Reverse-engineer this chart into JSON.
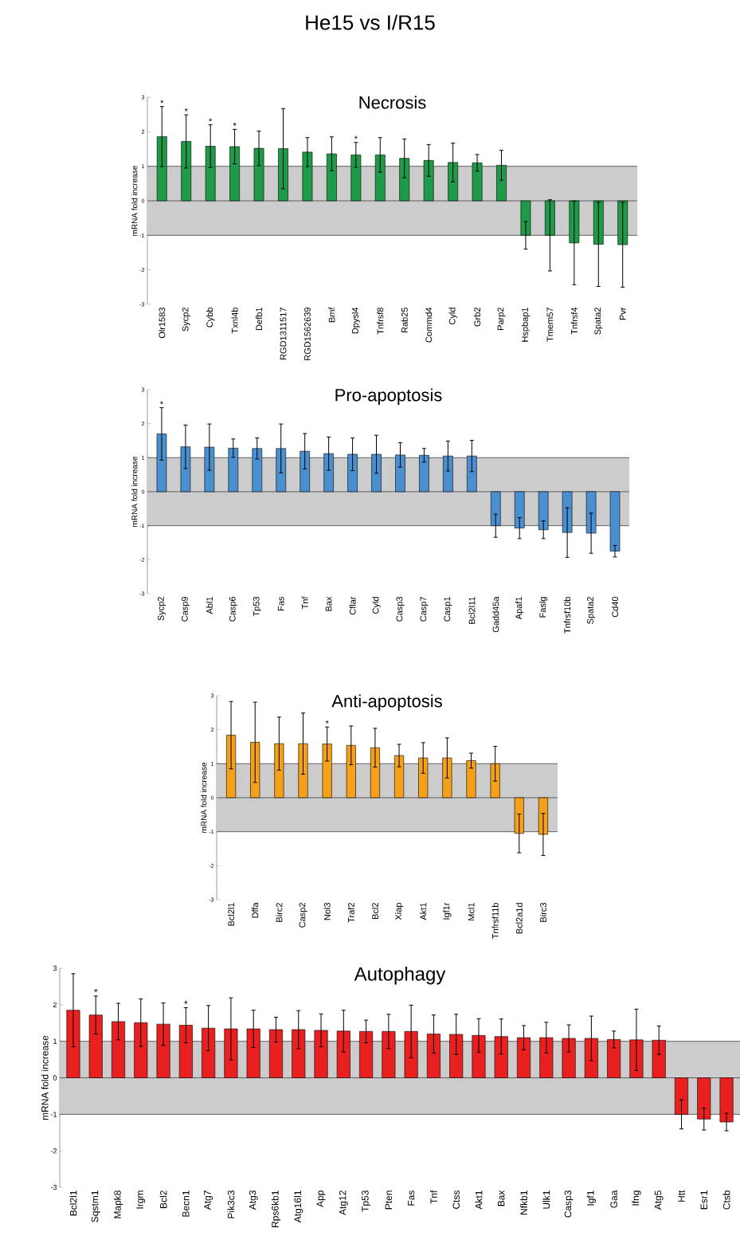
{
  "chart_data": [
    {
      "type": "bar",
      "title": "He15 vs I/R15",
      "subtitle": "Necrosis",
      "ylabel": "mRNA fold increase",
      "color": "#1f9a48",
      "categories": [
        "Olr1583",
        "Sycp2",
        "Cybb",
        "Txnl4b",
        "Defb1",
        "RGD1311517",
        "RGD1562639",
        "Bmf",
        "Dpysl4",
        "Tnfrsf8",
        "Rab25",
        "Commd4",
        "Cyld",
        "Grb2",
        "Parp2",
        "Hspbap1",
        "Tmem57",
        "Tnfrsf4",
        "Spata2",
        "Pvr"
      ],
      "values": [
        1.86,
        1.72,
        1.58,
        1.57,
        1.52,
        1.51,
        1.41,
        1.36,
        1.33,
        1.33,
        1.23,
        1.17,
        1.11,
        1.1,
        1.03,
        -1.0,
        -1.0,
        -1.22,
        -1.26,
        -1.27
      ],
      "errors": [
        0.87,
        0.77,
        0.62,
        0.5,
        0.5,
        1.16,
        0.42,
        0.49,
        0.36,
        0.5,
        0.56,
        0.46,
        0.56,
        0.24,
        0.43,
        0.4,
        1.03,
        1.21,
        1.22,
        1.23
      ],
      "ylim": [
        -3,
        3
      ],
      "yticks": [
        -3,
        -2,
        -1,
        0,
        1,
        2,
        3
      ],
      "bands": [
        {
          "axis": "y",
          "from": -1,
          "to": 1,
          "color": "#cccccc"
        }
      ],
      "ref_lines": [
        {
          "axis": "y",
          "value": -1
        },
        {
          "axis": "y",
          "value": 0
        },
        {
          "axis": "y",
          "value": 1
        }
      ],
      "annotations": [
        "*",
        "*",
        "*",
        "*",
        "*"
      ]
    },
    {
      "type": "bar",
      "title": "Pro-apoptosis",
      "ylabel": "mRNA fold increase",
      "color": "#4a90d0",
      "categories": [
        "Sycp2",
        "Casp9",
        "Abl1",
        "Casp6",
        "Tp53",
        "Fas",
        "Tnf",
        "Bax",
        "Cflar",
        "Cyld",
        "Casp3",
        "Casp7",
        "Casp1",
        "Bcl2l11",
        "Gadd45a",
        "Apaf1",
        "Faslg",
        "Tnfrsf10b",
        "Spata2",
        "Cd40"
      ],
      "values": [
        1.7,
        1.32,
        1.31,
        1.28,
        1.27,
        1.27,
        1.19,
        1.12,
        1.1,
        1.1,
        1.08,
        1.07,
        1.05,
        1.05,
        -1.0,
        -1.07,
        -1.12,
        -1.2,
        -1.22,
        -1.75
      ],
      "errors": [
        0.77,
        0.64,
        0.68,
        0.27,
        0.31,
        0.72,
        0.52,
        0.49,
        0.48,
        0.56,
        0.36,
        0.2,
        0.44,
        0.46,
        0.34,
        0.31,
        0.26,
        0.73,
        0.59,
        0.17
      ],
      "ylim": [
        -3,
        3
      ],
      "yticks": [
        -3,
        -2,
        -1,
        0,
        1,
        2,
        3
      ],
      "bands": [
        {
          "axis": "y",
          "from": -1,
          "to": 1,
          "color": "#cccccc"
        }
      ],
      "ref_lines": [
        {
          "axis": "y",
          "value": -1
        },
        {
          "axis": "y",
          "value": 0
        },
        {
          "axis": "y",
          "value": 1
        }
      ],
      "annotations": [
        "*"
      ]
    },
    {
      "type": "bar",
      "title": "Anti-apoptosis",
      "ylabel": "mRNA fold increase",
      "color": "#f5a01a",
      "categories": [
        "Bcl2l1",
        "Dffa",
        "Birc2",
        "Casp2",
        "Nol3",
        "Traf2",
        "Bcl2",
        "Xiap",
        "Akt1",
        "Igf1r",
        "Mcl1",
        "Tnfrsf11b",
        "Bcl2a1d",
        "Birc3"
      ],
      "values": [
        1.84,
        1.63,
        1.59,
        1.59,
        1.58,
        1.54,
        1.47,
        1.24,
        1.17,
        1.17,
        1.09,
        1.0,
        -1.05,
        -1.08
      ],
      "errors": [
        0.99,
        1.18,
        0.78,
        0.9,
        0.5,
        0.57,
        0.57,
        0.33,
        0.45,
        0.59,
        0.22,
        0.51,
        0.57,
        0.62
      ],
      "ylim": [
        -3,
        3
      ],
      "yticks": [
        -3,
        -2,
        -1,
        0,
        1,
        2,
        3
      ],
      "bands": [
        {
          "axis": "y",
          "from": -1,
          "to": 1,
          "color": "#cccccc"
        }
      ],
      "ref_lines": [
        {
          "axis": "y",
          "value": -1
        },
        {
          "axis": "y",
          "value": 0
        },
        {
          "axis": "y",
          "value": 1
        }
      ],
      "annotations": [
        "*"
      ]
    },
    {
      "type": "bar",
      "title": "Autophagy",
      "ylabel": "mRNA fold increase",
      "color": "#e82020",
      "categories": [
        "Bcl2l1",
        "Sqstm1",
        "Mapk8",
        "Irgm",
        "Bcl2",
        "Becn1",
        "Atg7",
        "Pik3c3",
        "Atg3",
        "Rps6kb1",
        "Atg16l1",
        "App",
        "Atg12",
        "Tp53",
        "Pten",
        "Fas",
        "Tnf",
        "Ctss",
        "Akt1",
        "Bax",
        "Nfkb1",
        "Ulk1",
        "Casp3",
        "Igf1",
        "Gaa",
        "Ifng",
        "Atg5",
        "Htt",
        "Esr1",
        "Ctsb"
      ],
      "values": [
        1.85,
        1.72,
        1.54,
        1.51,
        1.47,
        1.44,
        1.36,
        1.34,
        1.34,
        1.32,
        1.32,
        1.3,
        1.28,
        1.27,
        1.27,
        1.27,
        1.2,
        1.19,
        1.16,
        1.13,
        1.1,
        1.1,
        1.08,
        1.08,
        1.05,
        1.04,
        1.03,
        -1.0,
        -1.13,
        -1.21
      ],
      "errors": [
        1.0,
        0.52,
        0.5,
        0.65,
        0.58,
        0.48,
        0.62,
        0.85,
        0.51,
        0.34,
        0.52,
        0.45,
        0.57,
        0.31,
        0.47,
        0.72,
        0.52,
        0.55,
        0.46,
        0.48,
        0.33,
        0.42,
        0.37,
        0.61,
        0.23,
        0.84,
        0.39,
        0.4,
        0.3,
        0.24
      ],
      "ylim": [
        -3,
        3
      ],
      "yticks": [
        -3,
        -2,
        -1,
        0,
        1,
        2,
        3
      ],
      "bands": [
        {
          "axis": "y",
          "from": -1,
          "to": 1,
          "color": "#cccccc"
        }
      ],
      "ref_lines": [
        {
          "axis": "y",
          "value": -1
        },
        {
          "axis": "y",
          "value": 0
        },
        {
          "axis": "y",
          "value": 1
        }
      ],
      "annotations": [
        "*",
        "*"
      ]
    }
  ]
}
